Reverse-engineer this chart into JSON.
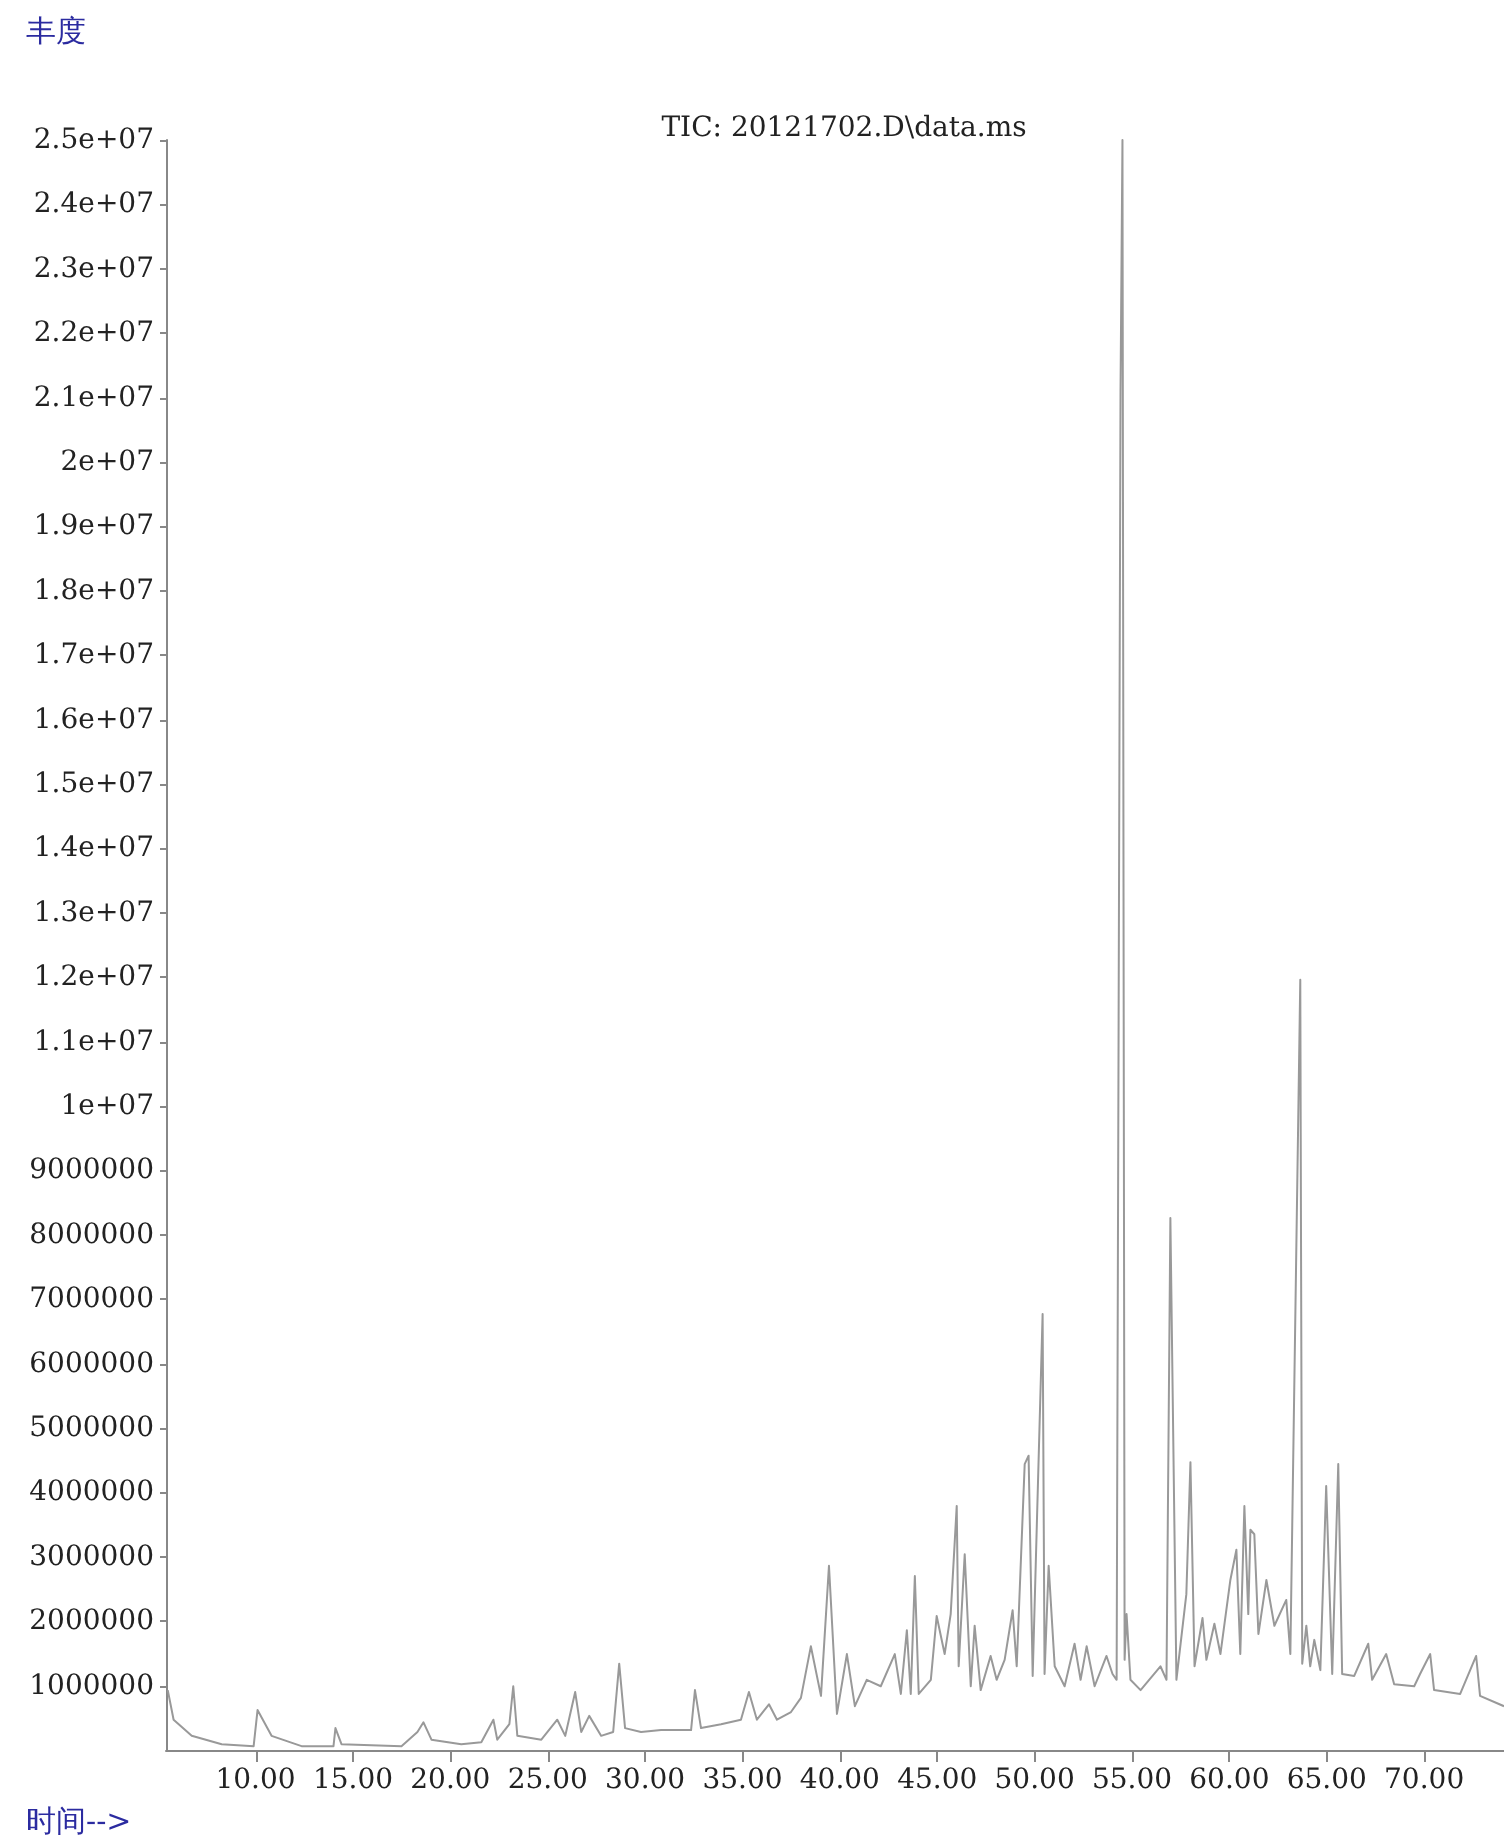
{
  "chart_data": {
    "type": "line",
    "title": "TIC: 20121702.D\\data.ms",
    "xlabel": "时间-->",
    "ylabel": "丰度",
    "color": "#999999",
    "marker": "none",
    "line_style": "solid",
    "xlim": [
      5.4,
      74.1
    ],
    "xticks": [
      {
        "value": 10,
        "label": "10.00"
      },
      {
        "value": 15,
        "label": "15.00"
      },
      {
        "value": 20,
        "label": "20.00"
      },
      {
        "value": 25,
        "label": "25.00"
      },
      {
        "value": 30,
        "label": "30.00"
      },
      {
        "value": 35,
        "label": "35.00"
      },
      {
        "value": 40,
        "label": "40.00"
      },
      {
        "value": 45,
        "label": "45.00"
      },
      {
        "value": 50,
        "label": "50.00"
      },
      {
        "value": 55,
        "label": "55.00"
      },
      {
        "value": 60,
        "label": "60.00"
      },
      {
        "value": 65,
        "label": "65.00"
      },
      {
        "value": 70,
        "label": "70.00"
      }
    ],
    "ylim": [
      0,
      25000000
    ],
    "yticks": [
      1000000,
      2000000,
      3000000,
      4000000,
      5000000,
      6000000,
      7000000,
      8000000,
      9000000,
      {
        "value": 10000000,
        "label": "1e+07"
      },
      {
        "value": 11000000,
        "label": "1.1e+07"
      },
      {
        "value": 12000000,
        "label": "1.2e+07"
      },
      {
        "value": 13000000,
        "label": "1.3e+07"
      },
      {
        "value": 14000000,
        "label": "1.4e+07"
      },
      {
        "value": 15000000,
        "label": "1.5e+07"
      },
      {
        "value": 16000000,
        "label": "1.6e+07"
      },
      {
        "value": 17000000,
        "label": "1.7e+07"
      },
      {
        "value": 18000000,
        "label": "1.8e+07"
      },
      {
        "value": 19000000,
        "label": "1.9e+07"
      },
      {
        "value": 20000000,
        "label": "2e+07"
      },
      {
        "value": 21000000,
        "label": "2.1e+07"
      },
      {
        "value": 22000000,
        "label": "2.2e+07"
      },
      {
        "value": 23000000,
        "label": "2.3e+07"
      },
      {
        "value": 24000000,
        "label": "2.4e+07"
      },
      {
        "value": 25000000,
        "label": "2.5e+07"
      }
    ],
    "x": [
      5.49,
      5.79,
      6.72,
      8.26,
      9.9,
      10.1,
      10.82,
      12.36,
      14.0,
      14.1,
      14.41,
      17.49,
      18.31,
      18.62,
      19.03,
      20.56,
      21.59,
      22.21,
      22.41,
      23.03,
      23.23,
      23.44,
      24.67,
      25.49,
      25.9,
      26.41,
      26.72,
      27.13,
      27.74,
      28.36,
      28.67,
      28.97,
      29.79,
      30.82,
      32.36,
      32.56,
      32.87,
      33.9,
      34.92,
      35.33,
      35.74,
      36.36,
      36.77,
      37.49,
      38.0,
      38.51,
      39.03,
      39.44,
      39.85,
      40.36,
      40.77,
      41.38,
      42.1,
      42.82,
      43.13,
      43.44,
      43.64,
      43.85,
      44.05,
      44.67,
      44.97,
      45.38,
      45.69,
      46.0,
      46.1,
      46.41,
      46.72,
      46.92,
      47.23,
      47.74,
      48.05,
      48.46,
      48.87,
      49.08,
      49.49,
      49.69,
      49.9,
      50.41,
      50.51,
      50.72,
      51.03,
      51.54,
      52.05,
      52.36,
      52.67,
      53.08,
      53.69,
      54.0,
      54.21,
      54.41,
      54.51,
      54.62,
      54.72,
      54.92,
      55.44,
      56.46,
      56.77,
      56.97,
      57.28,
      57.79,
      58.0,
      58.21,
      58.62,
      58.82,
      59.23,
      59.54,
      60.05,
      60.36,
      60.56,
      60.77,
      60.97,
      61.08,
      61.28,
      61.49,
      61.9,
      62.31,
      62.92,
      63.13,
      63.64,
      63.74,
      63.95,
      64.15,
      64.36,
      64.67,
      64.97,
      65.28,
      65.59,
      65.79,
      66.41,
      67.13,
      67.33,
      68.05,
      68.46,
      69.49,
      69.79,
      70.31,
      70.51,
      71.85,
      72.67,
      72.87,
      74.1
    ],
    "values": [
      930000,
      470000,
      220000,
      90000,
      60000,
      620000,
      220000,
      60000,
      60000,
      340000,
      90000,
      60000,
      280000,
      430000,
      160000,
      90000,
      120000,
      470000,
      160000,
      400000,
      990000,
      220000,
      160000,
      470000,
      220000,
      900000,
      280000,
      530000,
      220000,
      280000,
      1340000,
      340000,
      280000,
      310000,
      310000,
      930000,
      340000,
      400000,
      470000,
      900000,
      470000,
      710000,
      470000,
      590000,
      810000,
      1610000,
      840000,
      2860000,
      560000,
      1490000,
      680000,
      1090000,
      990000,
      1490000,
      870000,
      1860000,
      870000,
      2700000,
      870000,
      1090000,
      2080000,
      1490000,
      2110000,
      3790000,
      1300000,
      3040000,
      990000,
      1930000,
      930000,
      1460000,
      1090000,
      1400000,
      2170000,
      1300000,
      4440000,
      4570000,
      1150000,
      6770000,
      1180000,
      2860000,
      1300000,
      990000,
      1650000,
      1090000,
      1610000,
      990000,
      1460000,
      1180000,
      1090000,
      21100000,
      25000000,
      1400000,
      2110000,
      1090000,
      930000,
      1300000,
      1090000,
      8260000,
      1090000,
      2420000,
      4470000,
      1300000,
      2050000,
      1400000,
      1960000,
      1490000,
      2640000,
      3110000,
      1490000,
      3790000,
      2110000,
      3420000,
      3350000,
      1800000,
      2640000,
      1930000,
      2330000,
      1490000,
      11960000,
      1340000,
      1930000,
      1300000,
      1710000,
      1240000,
      4100000,
      1180000,
      4440000,
      1180000,
      1150000,
      1650000,
      1090000,
      1490000,
      1020000,
      990000,
      1180000,
      1490000,
      930000,
      870000,
      1460000,
      840000,
      680000
    ]
  }
}
